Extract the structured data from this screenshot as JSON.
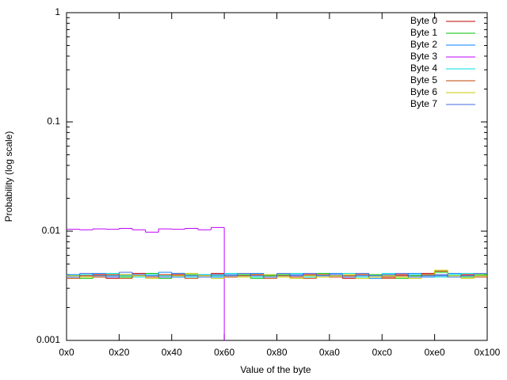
{
  "chart_data": {
    "type": "step",
    "xlabel": "Value of the byte",
    "ylabel": "Probability (log scale)",
    "log_y": true,
    "legend": "top right",
    "xlim": [
      0,
      256
    ],
    "ylim": [
      0.001,
      1
    ],
    "xticks": [
      {
        "value": 0,
        "label": "0x0"
      },
      {
        "value": 32,
        "label": "0x20"
      },
      {
        "value": 64,
        "label": "0x40"
      },
      {
        "value": 96,
        "label": "0x60"
      },
      {
        "value": 128,
        "label": "0x80"
      },
      {
        "value": 160,
        "label": "0xa0"
      },
      {
        "value": 192,
        "label": "0xc0"
      },
      {
        "value": 224,
        "label": "0xe0"
      },
      {
        "value": 256,
        "label": "0x100"
      }
    ],
    "yticks": [
      0.001,
      0.01,
      0.1,
      1
    ],
    "x": [
      0,
      8,
      16,
      24,
      32,
      40,
      48,
      56,
      64,
      72,
      80,
      88,
      96,
      104,
      112,
      120,
      128,
      136,
      144,
      152,
      160,
      168,
      176,
      184,
      192,
      200,
      208,
      216,
      224,
      232,
      240,
      248
    ],
    "series": [
      {
        "name": "Byte 0",
        "color": "#c00000",
        "values": [
          0.0038,
          0.0039,
          0.004,
          0.0037,
          0.0039,
          0.0041,
          0.0038,
          0.0039,
          0.004,
          0.0038,
          0.0039,
          0.0041,
          0.0039,
          0.0038,
          0.004,
          0.0039,
          0.0038,
          0.0039,
          0.004,
          0.0038,
          0.0039,
          0.0037,
          0.004,
          0.0039,
          0.0038,
          0.004,
          0.0039,
          0.0041,
          0.0039,
          0.0038,
          0.004,
          0.0039
        ]
      },
      {
        "name": "Byte 1",
        "color": "#00c000",
        "values": [
          0.0039,
          0.0037,
          0.0039,
          0.004,
          0.0038,
          0.0039,
          0.0041,
          0.0037,
          0.0039,
          0.004,
          0.0038,
          0.0039,
          0.0038,
          0.004,
          0.0037,
          0.0039,
          0.004,
          0.0038,
          0.0039,
          0.0041,
          0.0038,
          0.0039,
          0.0038,
          0.004,
          0.0039,
          0.0037,
          0.0039,
          0.004,
          0.0042,
          0.0039,
          0.0038,
          0.004
        ]
      },
      {
        "name": "Byte 2",
        "color": "#0080ff",
        "values": [
          0.004,
          0.0038,
          0.0041,
          0.0039,
          0.004,
          0.0038,
          0.0039,
          0.0042,
          0.0038,
          0.0039,
          0.004,
          0.0038,
          0.004,
          0.0039,
          0.0041,
          0.0038,
          0.0039,
          0.004,
          0.0038,
          0.0039,
          0.0041,
          0.0038,
          0.0039,
          0.0037,
          0.004,
          0.0039,
          0.0041,
          0.0038,
          0.0039,
          0.0041,
          0.0039,
          0.0038
        ]
      },
      {
        "name": "Byte 3",
        "color": "#c000ff",
        "values": [
          0.0104,
          0.0103,
          0.0105,
          0.0104,
          0.0106,
          0.0103,
          0.0098,
          0.0105,
          0.0104,
          0.0106,
          0.0103,
          0.0108,
          null,
          null,
          null,
          null,
          null,
          null,
          null,
          null,
          null,
          null,
          null,
          null,
          null,
          null,
          null,
          null,
          null,
          null,
          null,
          null
        ]
      },
      {
        "name": "Byte 4",
        "color": "#00dddd",
        "values": [
          0.0039,
          0.004,
          0.0038,
          0.0041,
          0.0039,
          0.0038,
          0.004,
          0.0039,
          0.0041,
          0.0038,
          0.004,
          0.0039,
          0.0041,
          0.0039,
          0.0038,
          0.004,
          0.0039,
          0.0041,
          0.0038,
          0.004,
          0.0039,
          0.0041,
          0.0038,
          0.0039,
          0.0041,
          0.0038,
          0.004,
          0.0039,
          0.0038,
          0.004,
          0.0041,
          0.0039
        ]
      },
      {
        "name": "Byte 5",
        "color": "#c04000",
        "values": [
          0.0037,
          0.0039,
          0.0038,
          0.004,
          0.0037,
          0.0039,
          0.0038,
          0.004,
          0.0039,
          0.0037,
          0.0038,
          0.004,
          0.0038,
          0.0039,
          0.004,
          0.0037,
          0.0039,
          0.0038,
          0.0037,
          0.004,
          0.0038,
          0.0039,
          0.004,
          0.0038,
          0.0037,
          0.0039,
          0.0038,
          0.004,
          0.0043,
          0.0038,
          0.0039,
          0.0038
        ]
      },
      {
        "name": "Byte 6",
        "color": "#c8c800",
        "values": [
          0.0039,
          0.0038,
          0.0039,
          0.0038,
          0.004,
          0.0039,
          0.0037,
          0.0038,
          0.0039,
          0.0041,
          0.0039,
          0.0037,
          0.0039,
          0.0038,
          0.0039,
          0.004,
          0.0038,
          0.0037,
          0.0039,
          0.0038,
          0.0039,
          0.004,
          0.0037,
          0.0038,
          0.0039,
          0.0038,
          0.0037,
          0.0039,
          0.0044,
          0.0039,
          0.0037,
          0.0039
        ]
      },
      {
        "name": "Byte 7",
        "color": "#4169e1",
        "values": [
          0.0038,
          0.0041,
          0.0039,
          0.0038,
          0.0042,
          0.004,
          0.0039,
          0.0038,
          0.0041,
          0.0039,
          0.0038,
          0.004,
          0.0039,
          0.0041,
          0.0039,
          0.0038,
          0.0041,
          0.0039,
          0.0041,
          0.0039,
          0.004,
          0.0038,
          0.0041,
          0.0039,
          0.004,
          0.0041,
          0.0038,
          0.0039,
          0.004,
          0.0038,
          0.0039,
          0.0041
        ]
      }
    ]
  }
}
